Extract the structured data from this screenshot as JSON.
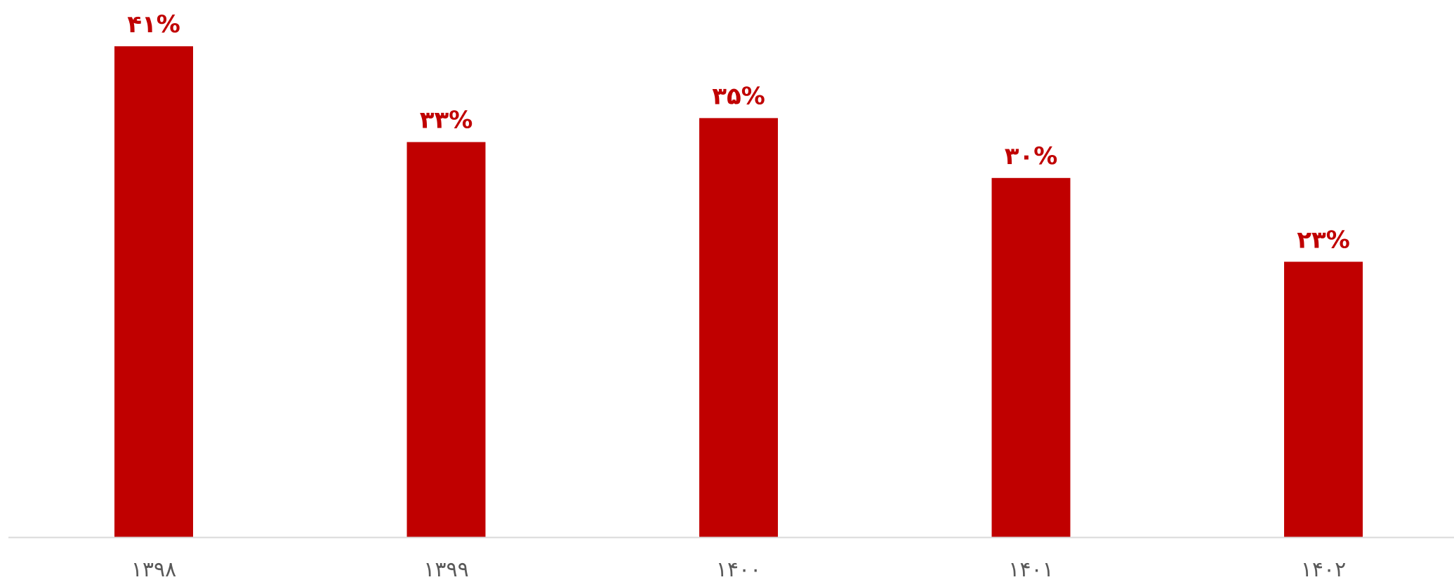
{
  "chart_data": {
    "type": "bar",
    "categories": [
      "۱۳۹۸",
      "۱۳۹۹",
      "۱۴۰۰",
      "۱۴۰۱",
      "۱۴۰۲"
    ],
    "values": [
      41,
      33,
      35,
      30,
      23
    ],
    "value_labels": [
      "۴۱%",
      "۳۳%",
      "۳۵%",
      "۳۰%",
      "۲۳%"
    ],
    "value_unit": "%",
    "title": "",
    "xlabel": "",
    "ylabel": "",
    "ylim": [
      0,
      41
    ],
    "grid": false,
    "legend": "none",
    "bar_color": "#C00000",
    "label_color": "#C00000",
    "axis_color": "#D9D9D9",
    "tick_label_color": "#595959"
  }
}
